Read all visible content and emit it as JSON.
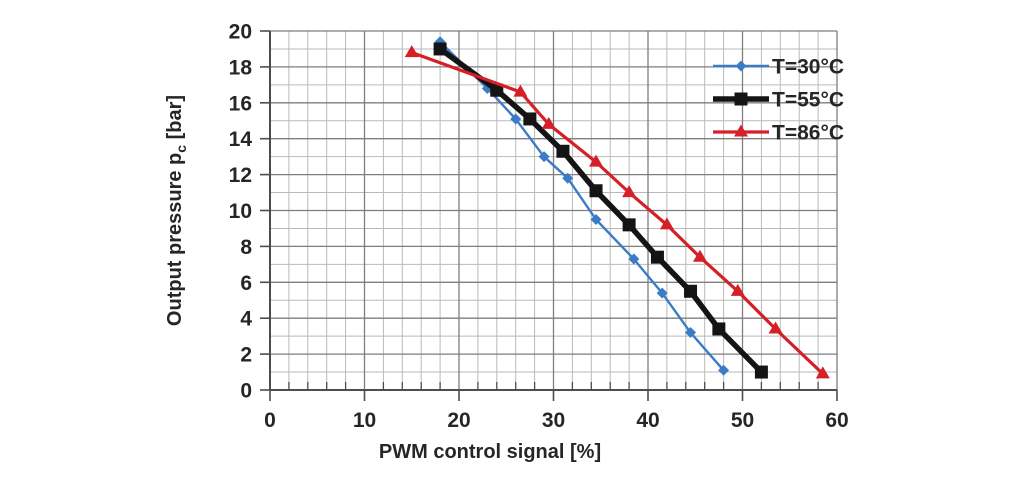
{
  "page": {
    "background": "#ffffff"
  },
  "chart_data": {
    "type": "line",
    "title": "",
    "xlabel": "PWM control signal [%]",
    "ylabel_main": "Output pressure p",
    "ylabel_sub": "c",
    "ylabel_unit": " [bar]",
    "xlim": [
      0,
      60
    ],
    "ylim": [
      0,
      20
    ],
    "x_major_step": 10,
    "x_minor_step": 2,
    "y_major_step": 2,
    "y_minor_step": 1,
    "x_ticks": [
      0,
      10,
      20,
      30,
      40,
      50,
      60
    ],
    "y_ticks": [
      0,
      2,
      4,
      6,
      8,
      10,
      12,
      14,
      16,
      18,
      20
    ],
    "grid": true,
    "legend_position": "inside-top-right",
    "colors": {
      "minor_grid": "#b9b9b9",
      "major_grid": "#7e7e7e",
      "axis": "#4d4d4d",
      "text": "#262626"
    },
    "series": [
      {
        "name": "T=30°C",
        "color": "#3c7cc6",
        "marker": "diamond",
        "line_width": 2.4,
        "points": [
          [
            18,
            19.4
          ],
          [
            23,
            16.8
          ],
          [
            26,
            15.1
          ],
          [
            29,
            13.0
          ],
          [
            31.5,
            11.8
          ],
          [
            34.5,
            9.5
          ],
          [
            38.5,
            7.3
          ],
          [
            41.5,
            5.4
          ],
          [
            44.5,
            3.2
          ],
          [
            48,
            1.1
          ]
        ]
      },
      {
        "name": "T=55°C",
        "color": "#141414",
        "marker": "square",
        "line_width": 5.5,
        "points": [
          [
            18,
            19.0
          ],
          [
            24,
            16.7
          ],
          [
            27.5,
            15.1
          ],
          [
            31,
            13.3
          ],
          [
            34.5,
            11.1
          ],
          [
            38,
            9.2
          ],
          [
            41,
            7.4
          ],
          [
            44.5,
            5.5
          ],
          [
            47.5,
            3.4
          ],
          [
            52,
            1.0
          ]
        ]
      },
      {
        "name": "T=86°C",
        "color": "#d42026",
        "marker": "triangle",
        "line_width": 3.2,
        "points": [
          [
            15,
            18.8
          ],
          [
            26.5,
            16.6
          ],
          [
            29.5,
            14.8
          ],
          [
            34.5,
            12.7
          ],
          [
            38,
            11.0
          ],
          [
            42,
            9.2
          ],
          [
            45.5,
            7.4
          ],
          [
            49.5,
            5.5
          ],
          [
            53.5,
            3.4
          ],
          [
            58.5,
            0.9
          ]
        ]
      }
    ]
  }
}
